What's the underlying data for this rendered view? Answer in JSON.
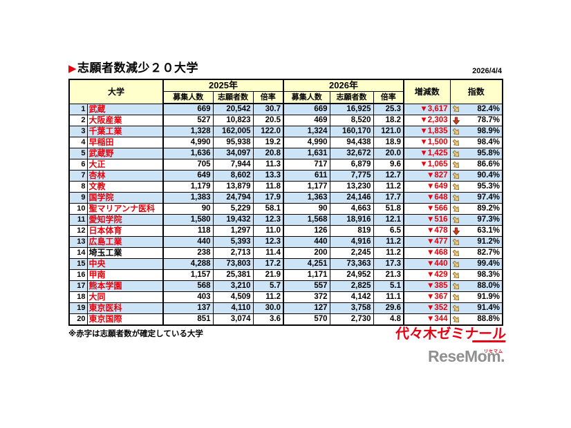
{
  "title": {
    "marker": "▶",
    "text": "志願者数減少２０大学"
  },
  "date": "2026/4/4",
  "footnote": "※赤字は志願者数が確定している大学",
  "logos": {
    "yoyogi": "代々木ゼミナール",
    "resemom": "ReseMom.",
    "resemom_ruby": "リセマム"
  },
  "colors": {
    "header_bg": "#FFFFCC",
    "row_alt_bg": "#CDE4F6",
    "text_red": "#E8000B",
    "logo_red": "#E60012",
    "logo_gray": "#909090",
    "arrow_tan": "#EBC980",
    "arrow_tan_stroke": "#8E6B22",
    "arrow_red": "#C8401F",
    "arrow_red_stroke": "#7A230E"
  },
  "chart_data": {
    "type": "table",
    "title": "志願者数減少２０大学",
    "columns_top": {
      "university": "大学",
      "y2025": "2025年",
      "y2026": "2026年",
      "change": "増減数",
      "index": "指数"
    },
    "subcolumns": [
      "募集人数",
      "志願者数",
      "倍率"
    ],
    "rows": [
      {
        "rank": "1",
        "name": "武蔵",
        "name_red": true,
        "y2025": [
          "669",
          "20,542",
          "30.7"
        ],
        "y2026": [
          "669",
          "16,925",
          "25.3"
        ],
        "change": "▼3,617",
        "trend": "down-right",
        "index": "82.4%"
      },
      {
        "rank": "2",
        "name": "大阪産業",
        "name_red": true,
        "y2025": [
          "527",
          "10,823",
          "20.5"
        ],
        "y2026": [
          "469",
          "8,520",
          "18.2"
        ],
        "change": "▼2,303",
        "trend": "down",
        "index": "78.7%"
      },
      {
        "rank": "3",
        "name": "千葉工業",
        "name_red": true,
        "y2025": [
          "1,328",
          "162,005",
          "122.0"
        ],
        "y2026": [
          "1,324",
          "160,170",
          "121.0"
        ],
        "change": "▼1,835",
        "trend": "down-right",
        "index": "98.9%"
      },
      {
        "rank": "4",
        "name": "早稲田",
        "name_red": true,
        "y2025": [
          "4,990",
          "95,938",
          "19.2"
        ],
        "y2026": [
          "4,990",
          "94,438",
          "18.9"
        ],
        "change": "▼1,500",
        "trend": "down-right",
        "index": "98.4%"
      },
      {
        "rank": "5",
        "name": "武蔵野",
        "name_red": true,
        "y2025": [
          "1,636",
          "34,097",
          "20.8"
        ],
        "y2026": [
          "1,631",
          "32,672",
          "20.0"
        ],
        "change": "▼1,425",
        "trend": "down-right",
        "index": "95.8%"
      },
      {
        "rank": "6",
        "name": "大正",
        "name_red": true,
        "y2025": [
          "705",
          "7,944",
          "11.3"
        ],
        "y2026": [
          "717",
          "6,879",
          "9.6"
        ],
        "change": "▼1,065",
        "trend": "down-right",
        "index": "86.6%"
      },
      {
        "rank": "7",
        "name": "杏林",
        "name_red": true,
        "y2025": [
          "649",
          "8,602",
          "13.3"
        ],
        "y2026": [
          "611",
          "7,775",
          "12.7"
        ],
        "change": "▼827",
        "trend": "down-right",
        "index": "90.4%"
      },
      {
        "rank": "8",
        "name": "文教",
        "name_red": true,
        "y2025": [
          "1,179",
          "13,879",
          "11.8"
        ],
        "y2026": [
          "1,177",
          "13,230",
          "11.2"
        ],
        "change": "▼649",
        "trend": "down-right",
        "index": "95.3%"
      },
      {
        "rank": "9",
        "name": "国学院",
        "name_red": true,
        "y2025": [
          "1,383",
          "24,794",
          "17.9"
        ],
        "y2026": [
          "1,363",
          "24,146",
          "17.7"
        ],
        "change": "▼648",
        "trend": "down-right",
        "index": "97.4%"
      },
      {
        "rank": "10",
        "name": "聖マリアンナ医科",
        "name_red": true,
        "y2025": [
          "90",
          "5,229",
          "58.1"
        ],
        "y2026": [
          "90",
          "4,663",
          "51.8"
        ],
        "change": "▼566",
        "trend": "down-right",
        "index": "89.2%"
      },
      {
        "rank": "11",
        "name": "愛知学院",
        "name_red": true,
        "y2025": [
          "1,580",
          "19,432",
          "12.3"
        ],
        "y2026": [
          "1,568",
          "18,916",
          "12.1"
        ],
        "change": "▼516",
        "trend": "down-right",
        "index": "97.3%"
      },
      {
        "rank": "12",
        "name": "日本体育",
        "name_red": true,
        "y2025": [
          "118",
          "1,297",
          "11.0"
        ],
        "y2026": [
          "126",
          "819",
          "6.5"
        ],
        "change": "▼478",
        "trend": "down",
        "index": "63.1%"
      },
      {
        "rank": "13",
        "name": "広島工業",
        "name_red": true,
        "y2025": [
          "440",
          "5,393",
          "12.3"
        ],
        "y2026": [
          "440",
          "4,916",
          "11.2"
        ],
        "change": "▼477",
        "trend": "down-right",
        "index": "91.2%"
      },
      {
        "rank": "14",
        "name": "埼玉工業",
        "name_red": false,
        "y2025": [
          "238",
          "2,713",
          "11.4"
        ],
        "y2026": [
          "200",
          "2,245",
          "11.2"
        ],
        "change": "▼468",
        "trend": "down-right",
        "index": "82.7%"
      },
      {
        "rank": "15",
        "name": "中央",
        "name_red": true,
        "y2025": [
          "4,288",
          "73,803",
          "17.2"
        ],
        "y2026": [
          "4,251",
          "73,363",
          "17.3"
        ],
        "change": "▼440",
        "trend": "down-right",
        "index": "99.4%"
      },
      {
        "rank": "16",
        "name": "甲南",
        "name_red": true,
        "y2025": [
          "1,157",
          "25,381",
          "21.9"
        ],
        "y2026": [
          "1,171",
          "24,952",
          "21.3"
        ],
        "change": "▼429",
        "trend": "down-right",
        "index": "98.3%"
      },
      {
        "rank": "17",
        "name": "熊本学園",
        "name_red": true,
        "y2025": [
          "568",
          "3,210",
          "5.7"
        ],
        "y2026": [
          "557",
          "2,825",
          "5.1"
        ],
        "change": "▼385",
        "trend": "down-right",
        "index": "88.0%"
      },
      {
        "rank": "18",
        "name": "大同",
        "name_red": true,
        "y2025": [
          "403",
          "4,509",
          "11.2"
        ],
        "y2026": [
          "372",
          "4,142",
          "11.1"
        ],
        "change": "▼367",
        "trend": "down-right",
        "index": "91.9%"
      },
      {
        "rank": "19",
        "name": "東京医科",
        "name_red": true,
        "y2025": [
          "137",
          "4,110",
          "30.0"
        ],
        "y2026": [
          "127",
          "3,758",
          "29.6"
        ],
        "change": "▼352",
        "trend": "down-right",
        "index": "91.4%"
      },
      {
        "rank": "20",
        "name": "東京国際",
        "name_red": true,
        "y2025": [
          "851",
          "3,074",
          "3.6"
        ],
        "y2026": [
          "570",
          "2,730",
          "4.8"
        ],
        "change": "▼344",
        "trend": "down-right",
        "index": "88.8%"
      }
    ]
  }
}
